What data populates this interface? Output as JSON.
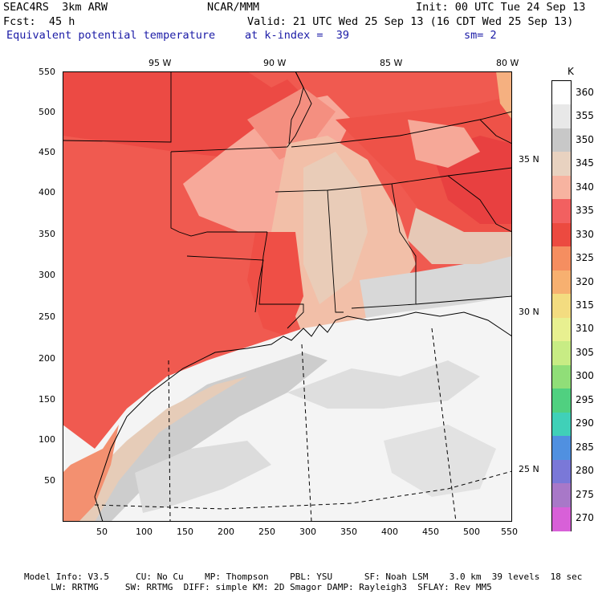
{
  "header": {
    "line1_left": "SEAC4RS  3km ARW",
    "line1_mid": "NCAR/MMM",
    "line1_right": "Init: 00 UTC Tue 24 Sep 13",
    "line2_left": "Fcst:  45 h",
    "line2_right": "Valid: 21 UTC Wed 25 Sep 13 (16 CDT Wed 25 Sep 13)",
    "line3_left": "Equivalent potential temperature",
    "line3_mid": "at k-index =  39",
    "line3_right": "sm= 2"
  },
  "map": {
    "lon_labels": [
      "95 W",
      "90 W",
      "85 W",
      "80 W"
    ],
    "lat_labels": [
      "35 N",
      "30 N",
      "25 N"
    ],
    "x_ticks": [
      "50",
      "100",
      "150",
      "200",
      "250",
      "300",
      "350",
      "400",
      "450",
      "500",
      "550"
    ],
    "y_ticks": [
      "550",
      "500",
      "450",
      "400",
      "350",
      "300",
      "250",
      "200",
      "150",
      "100",
      "50"
    ]
  },
  "colorbar": {
    "unit": "K",
    "levels": [
      "360",
      "355",
      "350",
      "345",
      "340",
      "335",
      "330",
      "325",
      "320",
      "315",
      "310",
      "305",
      "300",
      "295",
      "290",
      "285",
      "280",
      "275",
      "270"
    ],
    "colors": [
      "#ffffff",
      "#e8e8e8",
      "#c8c8c8",
      "#e8d2c0",
      "#f7b3a0",
      "#f26060",
      "#ec4a40",
      "#f58e60",
      "#f7b070",
      "#f3dc80",
      "#e8f090",
      "#c8ec84",
      "#90de78",
      "#50d080",
      "#40d0b8",
      "#5090e0",
      "#7a78d8",
      "#a878c8",
      "#d860d8"
    ]
  },
  "footer": {
    "line1": "Model Info: V3.5     CU: No Cu    MP: Thompson    PBL: YSU      SF: Noah LSM    3.0 km  39 levels  18 sec",
    "line2": "     LW: RRTMG     SW: RRTMG  DIFF: simple KM: 2D Smagor DAMP: Rayleigh3  SFLAY: Rev MM5"
  }
}
